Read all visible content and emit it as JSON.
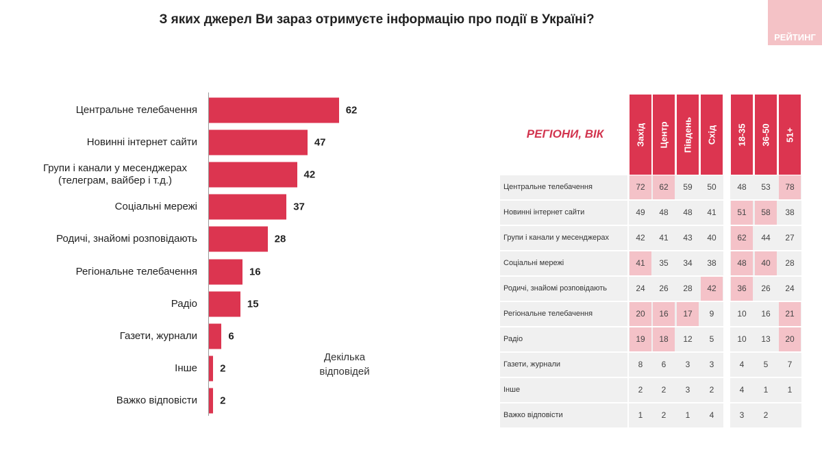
{
  "title": "З яких джерел Ви зараз отримуєте інформацію про події в Україні?",
  "logo_text": "РЕЙТИНГ",
  "colors": {
    "bar": "#dc3550",
    "highlight": "#f4c2c8",
    "header": "#dc3550"
  },
  "note": "Декілька відповідей",
  "chart_data": [
    {
      "type": "bar",
      "orientation": "horizontal",
      "categories": [
        "Центральне телебачення",
        "Новинні інтернет сайти",
        "Групи і канали у месенджерах (телеграм, вайбер і т.д.)",
        "Соціальні мережі",
        "Родичі, знайомі розповідають",
        "Регіональне телебачення",
        "Радіо",
        "Газети, журнали",
        "Інше",
        "Важко відповісти"
      ],
      "values": [
        62,
        47,
        42,
        37,
        28,
        16,
        15,
        6,
        2,
        2
      ]
    },
    {
      "type": "table",
      "title": "РЕГІОНИ, ВІК",
      "columns": [
        "Захід",
        "Центр",
        "Південь",
        "Схід",
        "18-35",
        "36-50",
        "51+"
      ],
      "rows": [
        {
          "label": "Центральне телебачення",
          "values": [
            "72",
            "62",
            "59",
            "50",
            "48",
            "53",
            "78"
          ],
          "highlight": [
            0,
            1,
            6
          ]
        },
        {
          "label": "Новинні інтернет сайти",
          "values": [
            "49",
            "48",
            "48",
            "41",
            "51",
            "58",
            "38"
          ],
          "highlight": [
            4,
            5
          ]
        },
        {
          "label": "Групи і канали у месенджерах",
          "values": [
            "42",
            "41",
            "43",
            "40",
            "62",
            "44",
            "27"
          ],
          "highlight": [
            4
          ]
        },
        {
          "label": "Соціальні мережі",
          "values": [
            "41",
            "35",
            "34",
            "38",
            "48",
            "40",
            "28"
          ],
          "highlight": [
            0,
            4,
            5
          ]
        },
        {
          "label": "Родичі, знайомі розповідають",
          "values": [
            "24",
            "26",
            "28",
            "42",
            "36",
            "26",
            "24"
          ],
          "highlight": [
            3,
            4
          ]
        },
        {
          "label": "Регіональне телебачення",
          "values": [
            "20",
            "16",
            "17",
            "9",
            "10",
            "16",
            "21"
          ],
          "highlight": [
            0,
            1,
            2,
            6
          ]
        },
        {
          "label": "Радіо",
          "values": [
            "19",
            "18",
            "12",
            "5",
            "10",
            "13",
            "20"
          ],
          "highlight": [
            0,
            1,
            6
          ]
        },
        {
          "label": "Газети, журнали",
          "values": [
            "8",
            "6",
            "3",
            "3",
            "4",
            "5",
            "7"
          ],
          "highlight": []
        },
        {
          "label": "Інше",
          "values": [
            "2",
            "2",
            "3",
            "2",
            "4",
            "1",
            "1"
          ],
          "highlight": []
        },
        {
          "label": "Важко відповісти",
          "values": [
            "1",
            "2",
            "1",
            "4",
            "3",
            "2",
            ""
          ],
          "highlight": []
        }
      ]
    }
  ]
}
